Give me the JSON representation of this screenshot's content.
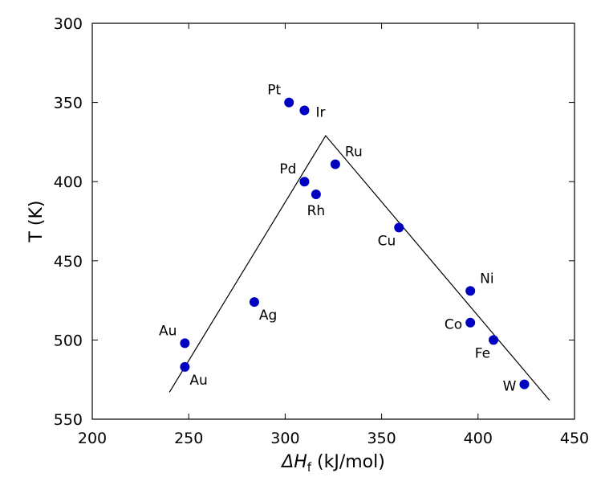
{
  "chart_data": {
    "type": "scatter",
    "title": "",
    "xlabel": {
      "base": "ΔH",
      "sub": "f",
      "unit": " (kJ/mol)"
    },
    "ylabel": "T (K)",
    "xlim": [
      200,
      450
    ],
    "ylim": [
      300,
      550
    ],
    "y_inverted": true,
    "grid": false,
    "xticks": [
      "200",
      "250",
      "300",
      "350",
      "400",
      "450"
    ],
    "yticks": [
      "300",
      "350",
      "400",
      "450",
      "500",
      "550"
    ],
    "marker_color": "#0000c0",
    "line_color": "#000000",
    "points": [
      {
        "label": "Pt",
        "x": 302,
        "y": 350,
        "label_pos": "upper-left"
      },
      {
        "label": "Ir",
        "x": 310,
        "y": 355,
        "label_pos": "right"
      },
      {
        "label": "Ru",
        "x": 326,
        "y": 389,
        "label_pos": "upper-right"
      },
      {
        "label": "Pd",
        "x": 310,
        "y": 400,
        "label_pos": "upper-left"
      },
      {
        "label": "Rh",
        "x": 316,
        "y": 408,
        "label_pos": "below"
      },
      {
        "label": "Cu",
        "x": 359,
        "y": 429,
        "label_pos": "lower-left"
      },
      {
        "label": "Ni",
        "x": 396,
        "y": 469,
        "label_pos": "upper-right"
      },
      {
        "label": "Ag",
        "x": 284,
        "y": 476,
        "label_pos": "lower-right"
      },
      {
        "label": "Co",
        "x": 396,
        "y": 489,
        "label_pos": "left"
      },
      {
        "label": "Fe",
        "x": 408,
        "y": 500,
        "label_pos": "lower-left"
      },
      {
        "label": "Au",
        "x": 248,
        "y": 502,
        "label_pos": "upper-left"
      },
      {
        "label": "Au",
        "x": 248,
        "y": 517,
        "label_pos": "lower-right"
      },
      {
        "label": "W",
        "x": 424,
        "y": 528,
        "label_pos": "left"
      }
    ],
    "fit_line": [
      {
        "x": 240,
        "y": 533
      },
      {
        "x": 321,
        "y": 371
      },
      {
        "x": 437,
        "y": 538
      }
    ]
  }
}
